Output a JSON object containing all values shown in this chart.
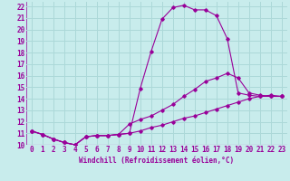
{
  "xlabel": "Windchill (Refroidissement éolien,°C)",
  "bg_color": "#c8ecec",
  "grid_color": "#acd8d8",
  "line_color": "#990099",
  "xlim": [
    -0.5,
    23.5
  ],
  "ylim": [
    10,
    22.4
  ],
  "xticks": [
    0,
    1,
    2,
    3,
    4,
    5,
    6,
    7,
    8,
    9,
    10,
    11,
    12,
    13,
    14,
    15,
    16,
    17,
    18,
    19,
    20,
    21,
    22,
    23
  ],
  "yticks": [
    10,
    11,
    12,
    13,
    14,
    15,
    16,
    17,
    18,
    19,
    20,
    21,
    22
  ],
  "curve1_x": [
    0,
    1,
    2,
    3,
    4,
    5,
    6,
    7,
    8,
    9,
    10,
    11,
    12,
    13,
    14,
    15,
    16,
    17,
    18,
    19,
    20,
    21,
    22,
    23
  ],
  "curve1_y": [
    11.2,
    10.9,
    10.5,
    10.2,
    10.0,
    10.7,
    10.8,
    10.8,
    10.9,
    11.0,
    14.9,
    18.1,
    20.9,
    21.9,
    22.1,
    21.7,
    21.7,
    21.2,
    19.2,
    14.5,
    14.3,
    14.2,
    14.2,
    14.2
  ],
  "curve2_x": [
    0,
    1,
    2,
    3,
    4,
    5,
    6,
    7,
    8,
    9,
    10,
    11,
    12,
    13,
    14,
    15,
    16,
    17,
    18,
    19,
    20,
    21,
    22,
    23
  ],
  "curve2_y": [
    11.2,
    10.9,
    10.5,
    10.2,
    10.0,
    10.7,
    10.8,
    10.8,
    10.9,
    11.8,
    12.2,
    12.5,
    13.0,
    13.5,
    14.2,
    14.8,
    15.5,
    15.8,
    16.2,
    15.8,
    14.5,
    14.3,
    14.2,
    14.2
  ],
  "curve3_x": [
    0,
    1,
    2,
    3,
    4,
    5,
    6,
    7,
    8,
    9,
    10,
    11,
    12,
    13,
    14,
    15,
    16,
    17,
    18,
    19,
    20,
    21,
    22,
    23
  ],
  "curve3_y": [
    11.2,
    10.9,
    10.5,
    10.2,
    10.0,
    10.7,
    10.8,
    10.8,
    10.9,
    11.0,
    11.2,
    11.5,
    11.7,
    12.0,
    12.3,
    12.5,
    12.8,
    13.1,
    13.4,
    13.7,
    14.0,
    14.2,
    14.3,
    14.2
  ],
  "xlabel_fontsize": 5.5,
  "tick_fontsize": 5.5
}
